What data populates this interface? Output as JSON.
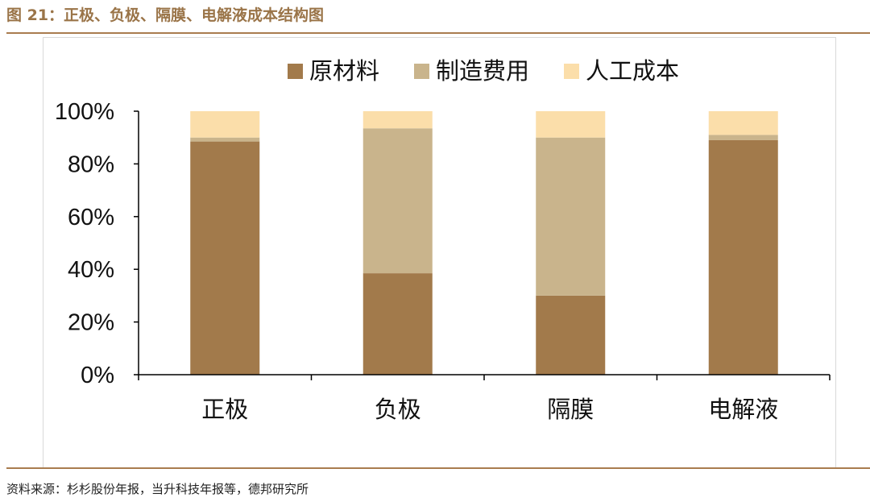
{
  "header": {
    "title": "图 21：正极、负极、隔膜、电解液成本结构图"
  },
  "footer": {
    "source": "资料来源：杉杉股份年报，当升科技年报等，德邦研究所"
  },
  "colors": {
    "raw_material": "#a27a4b",
    "manufacturing": "#c9b48c",
    "labor": "#fbdeaa",
    "rule": "#a97c4f"
  },
  "chart_data": {
    "type": "bar",
    "stacked": true,
    "percent": true,
    "title": "",
    "xlabel": "",
    "ylabel": "",
    "ylim": [
      0,
      100
    ],
    "yticks": [
      "0%",
      "20%",
      "40%",
      "60%",
      "80%",
      "100%"
    ],
    "categories": [
      "正极",
      "负极",
      "隔膜",
      "电解液"
    ],
    "series": [
      {
        "name": "原材料",
        "color": "#a27a4b",
        "values": [
          88.5,
          38.5,
          30,
          89
        ]
      },
      {
        "name": "制造费用",
        "color": "#c9b48c",
        "values": [
          1.5,
          55,
          60,
          2
        ]
      },
      {
        "name": "人工成本",
        "color": "#fbdeaa",
        "values": [
          10,
          6.5,
          10,
          9
        ]
      }
    ],
    "legend_position": "top",
    "grid": false
  }
}
